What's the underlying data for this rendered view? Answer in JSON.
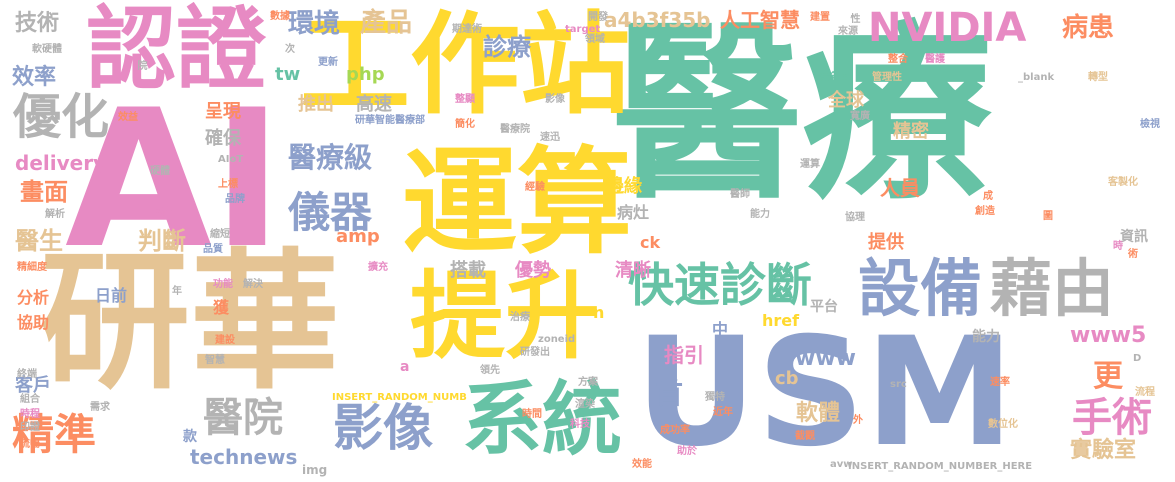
{
  "colors": {
    "teal": "#66c2a5",
    "orange": "#fc8d62",
    "blue": "#8da0cb",
    "pink": "#e78ac3",
    "green": "#a6d854",
    "yellow": "#ffd92f",
    "tan": "#e5c494",
    "gray": "#b3b3b3"
  },
  "words": [
    {
      "text": "醫療",
      "color": "teal"
    },
    {
      "text": "AI",
      "color": "pink"
    },
    {
      "text": "研華",
      "color": "tan"
    },
    {
      "text": "USM",
      "color": "blue"
    },
    {
      "text": "運算",
      "color": "yellow"
    },
    {
      "text": "工作站",
      "color": "yellow"
    },
    {
      "text": "提升",
      "color": "yellow"
    },
    {
      "text": "認證",
      "color": "pink"
    },
    {
      "text": "系統",
      "color": "teal"
    },
    {
      "text": "設備",
      "color": "blue"
    },
    {
      "text": "藉由",
      "color": "gray"
    },
    {
      "text": "影像",
      "color": "blue"
    },
    {
      "text": "快速診斷",
      "color": "teal"
    },
    {
      "text": "NVIDIA",
      "color": "pink"
    },
    {
      "text": "優化",
      "color": "gray"
    },
    {
      "text": "儀器",
      "color": "blue"
    },
    {
      "text": "精準",
      "color": "orange"
    },
    {
      "text": "醫院",
      "color": "gray"
    },
    {
      "text": "手術",
      "color": "pink"
    },
    {
      "text": "醫療級",
      "color": "blue"
    },
    {
      "text": "產品",
      "color": "tan"
    },
    {
      "text": "環境",
      "color": "blue"
    },
    {
      "text": "診療",
      "color": "blue"
    },
    {
      "text": "技術",
      "color": "gray"
    },
    {
      "text": "效率",
      "color": "blue"
    },
    {
      "text": "病患",
      "color": "orange"
    },
    {
      "text": "畫面",
      "color": "orange"
    },
    {
      "text": "醫生",
      "color": "tan"
    },
    {
      "text": "判斷",
      "color": "tan"
    },
    {
      "text": "delivery",
      "color": "pink"
    },
    {
      "text": "technews",
      "color": "blue"
    },
    {
      "text": "www5",
      "color": "pink"
    },
    {
      "text": "www",
      "color": "blue"
    },
    {
      "text": "更",
      "color": "orange"
    },
    {
      "text": "首",
      "color": "blue"
    },
    {
      "text": "中",
      "color": "blue"
    },
    {
      "text": "指引",
      "color": "pink"
    },
    {
      "text": "軟體",
      "color": "tan"
    },
    {
      "text": "實驗室",
      "color": "tan"
    },
    {
      "text": "a4b3f35b",
      "color": "tan"
    },
    {
      "text": "人工智慧",
      "color": "orange"
    },
    {
      "text": "php",
      "color": "green"
    },
    {
      "text": "tw",
      "color": "teal"
    },
    {
      "text": "推出",
      "color": "tan"
    },
    {
      "text": "高速",
      "color": "gray"
    },
    {
      "text": "全球",
      "color": "tan"
    },
    {
      "text": "精密",
      "color": "tan"
    },
    {
      "text": "呈現",
      "color": "orange"
    },
    {
      "text": "確保",
      "color": "gray"
    },
    {
      "text": "邊緣",
      "color": "yellow"
    },
    {
      "text": "病灶",
      "color": "gray"
    },
    {
      "text": "人員",
      "color": "orange"
    },
    {
      "text": "提供",
      "color": "orange"
    },
    {
      "text": "資訊",
      "color": "gray"
    },
    {
      "text": "amp",
      "color": "orange"
    },
    {
      "text": "搭載",
      "color": "gray"
    },
    {
      "text": "優勢",
      "color": "pink"
    },
    {
      "text": "清晰",
      "color": "pink"
    },
    {
      "text": "分析",
      "color": "orange"
    },
    {
      "text": "協助",
      "color": "orange"
    },
    {
      "text": "日前",
      "color": "blue"
    },
    {
      "text": "獲",
      "color": "orange"
    },
    {
      "text": "客戶",
      "color": "blue"
    },
    {
      "text": "cb",
      "color": "tan"
    },
    {
      "text": "ck",
      "color": "orange"
    },
    {
      "text": "href",
      "color": "yellow"
    },
    {
      "text": "平台",
      "color": "gray"
    },
    {
      "text": "能力",
      "color": "gray"
    },
    {
      "text": "款",
      "color": "blue"
    },
    {
      "text": "a",
      "color": "pink"
    },
    {
      "text": "n",
      "color": "yellow"
    },
    {
      "text": "img",
      "color": "gray"
    },
    {
      "text": "數位化",
      "color": "tan"
    },
    {
      "text": "流程",
      "color": "tan"
    },
    {
      "text": "時間",
      "color": "orange"
    },
    {
      "text": "方案",
      "color": "gray"
    },
    {
      "text": "整合",
      "color": "orange"
    },
    {
      "text": "管理性",
      "color": "tan"
    },
    {
      "text": "安全性",
      "color": "teal"
    },
    {
      "text": "轉型",
      "color": "tan"
    },
    {
      "text": "_blank",
      "color": "gray"
    },
    {
      "text": "target",
      "color": "pink"
    },
    {
      "text": "期達術",
      "color": "gray"
    },
    {
      "text": "更新",
      "color": "blue"
    },
    {
      "text": "研華智能醫療部",
      "color": "blue"
    },
    {
      "text": "醫療院",
      "color": "gray"
    },
    {
      "text": "速迅",
      "color": "gray"
    },
    {
      "text": "簡化",
      "color": "orange"
    },
    {
      "text": "整顯",
      "color": "pink"
    },
    {
      "text": "影像",
      "color": "gray"
    },
    {
      "text": "軟硬體",
      "color": "gray"
    },
    {
      "text": "效益",
      "color": "orange"
    },
    {
      "text": "AIoT",
      "color": "gray"
    },
    {
      "text": "硬體",
      "color": "gray"
    },
    {
      "text": "上標",
      "color": "orange"
    },
    {
      "text": "品牌",
      "color": "blue"
    },
    {
      "text": "基礎",
      "color": "pink"
    },
    {
      "text": "解析",
      "color": "gray"
    },
    {
      "text": "縮短",
      "color": "gray"
    },
    {
      "text": "品質",
      "color": "blue"
    },
    {
      "text": "精細度",
      "color": "orange"
    },
    {
      "text": "功能",
      "color": "pink"
    },
    {
      "text": "解決",
      "color": "gray"
    },
    {
      "text": "擴充",
      "color": "pink"
    },
    {
      "text": "建設",
      "color": "orange"
    },
    {
      "text": "研發出",
      "color": "gray"
    },
    {
      "text": "治療",
      "color": "gray"
    },
    {
      "text": "領先",
      "color": "gray"
    },
    {
      "text": "zoneid",
      "color": "gray"
    },
    {
      "text": "INSERT_RANDOM_NUMB",
      "color": "yellow"
    },
    {
      "text": "INSERT_RANDOM_NUMBER_HERE",
      "color": "gray"
    },
    {
      "text": "src",
      "color": "gray"
    },
    {
      "text": "avw",
      "color": "gray"
    },
    {
      "text": "近年",
      "color": "orange"
    },
    {
      "text": "成功率",
      "color": "orange"
    },
    {
      "text": "科技",
      "color": "pink"
    },
    {
      "text": "渲染",
      "color": "gray"
    },
    {
      "text": "智慧",
      "color": "gray"
    },
    {
      "text": "時程",
      "color": "pink"
    },
    {
      "text": "組合",
      "color": "gray"
    },
    {
      "text": "印證",
      "color": "gray"
    },
    {
      "text": "流暢",
      "color": "orange"
    },
    {
      "text": "需求",
      "color": "gray"
    },
    {
      "text": "終端",
      "color": "gray"
    },
    {
      "text": "效能",
      "color": "orange"
    },
    {
      "text": "助於",
      "color": "pink"
    },
    {
      "text": "截觀",
      "color": "orange"
    },
    {
      "text": "數據",
      "color": "orange"
    },
    {
      "text": "次",
      "color": "gray"
    },
    {
      "text": "來源",
      "color": "gray"
    },
    {
      "text": "開發",
      "color": "gray"
    },
    {
      "text": "領域",
      "color": "gray"
    },
    {
      "text": "建置",
      "color": "orange"
    },
    {
      "text": "醫護",
      "color": "pink"
    },
    {
      "text": "檢視",
      "color": "blue"
    },
    {
      "text": "客製化",
      "color": "tan"
    },
    {
      "text": "創造",
      "color": "orange"
    },
    {
      "text": "協理",
      "color": "gray"
    },
    {
      "text": "經驗",
      "color": "orange"
    },
    {
      "text": "醫師",
      "color": "gray"
    },
    {
      "text": "能力",
      "color": "gray"
    },
    {
      "text": "寬廣",
      "color": "gray"
    },
    {
      "text": "成",
      "color": "orange"
    },
    {
      "text": "圖",
      "color": "orange"
    },
    {
      "text": "時",
      "color": "pink"
    },
    {
      "text": "術",
      "color": "orange"
    },
    {
      "text": "年",
      "color": "gray"
    },
    {
      "text": "運算",
      "color": "gray"
    },
    {
      "text": "D",
      "color": "gray"
    },
    {
      "text": "外",
      "color": "orange"
    },
    {
      "text": "院",
      "color": "gray"
    },
    {
      "text": "性",
      "color": "gray"
    },
    {
      "text": "獨特",
      "color": "gray"
    },
    {
      "text": "速率",
      "color": "orange"
    }
  ]
}
